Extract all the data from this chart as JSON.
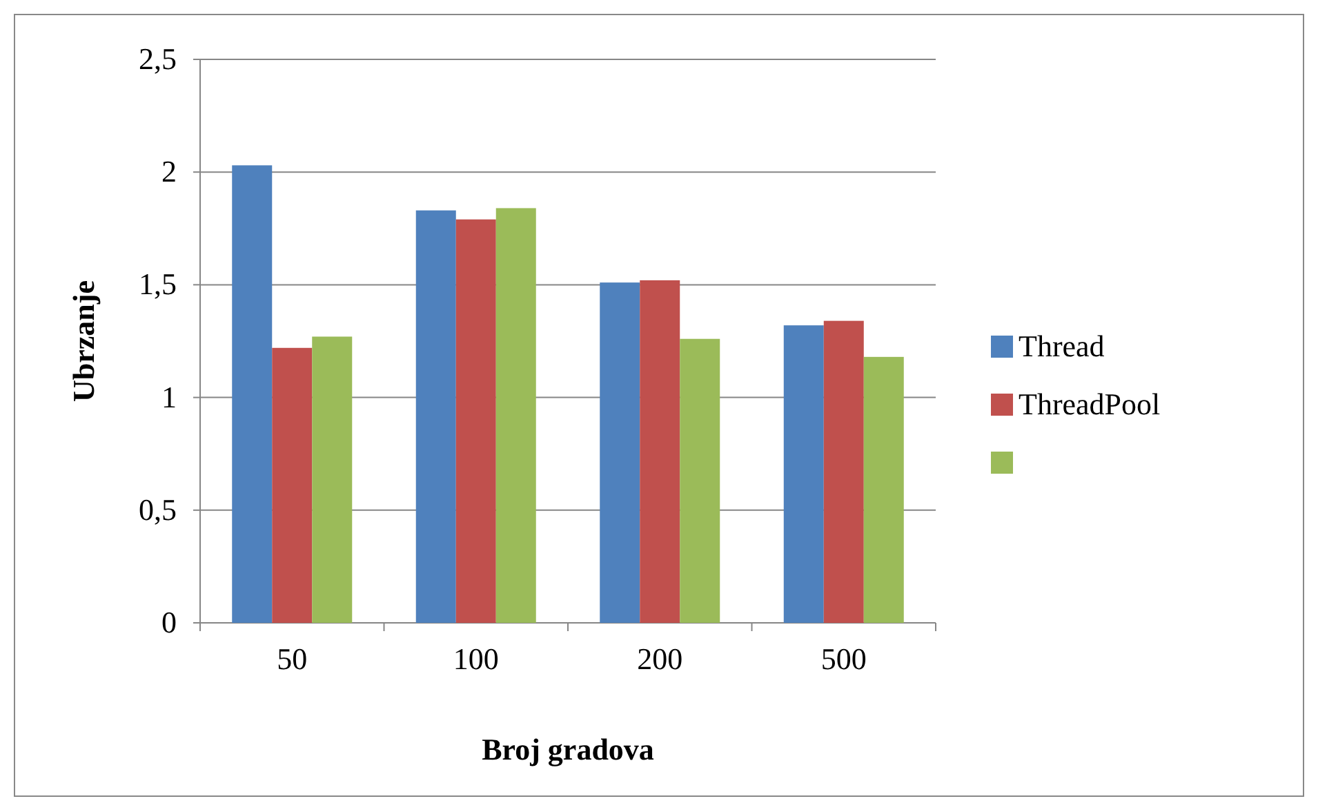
{
  "chart_data": {
    "type": "bar",
    "xlabel": "Broj gradova",
    "ylabel": "Ubrzanje",
    "categories": [
      "50",
      "100",
      "200",
      "500"
    ],
    "series": [
      {
        "name": "Thread",
        "color": "#4f81bd",
        "values": [
          2.03,
          1.83,
          1.51,
          1.32
        ]
      },
      {
        "name": "ThreadPool",
        "color": "#c0504d",
        "values": [
          1.22,
          1.79,
          1.52,
          1.34
        ]
      },
      {
        "color": "#9bbb59",
        "values": [
          1.27,
          1.84,
          1.26,
          1.18
        ]
      }
    ],
    "ylim": [
      0,
      2.5
    ],
    "yticks": [
      0,
      {
        "value": 0.5,
        "label": "0,5"
      },
      1,
      {
        "value": 1.5,
        "label": "1,5"
      },
      2,
      {
        "value": 2.5,
        "label": "2,5"
      }
    ],
    "grid": "y",
    "legend": "right"
  }
}
